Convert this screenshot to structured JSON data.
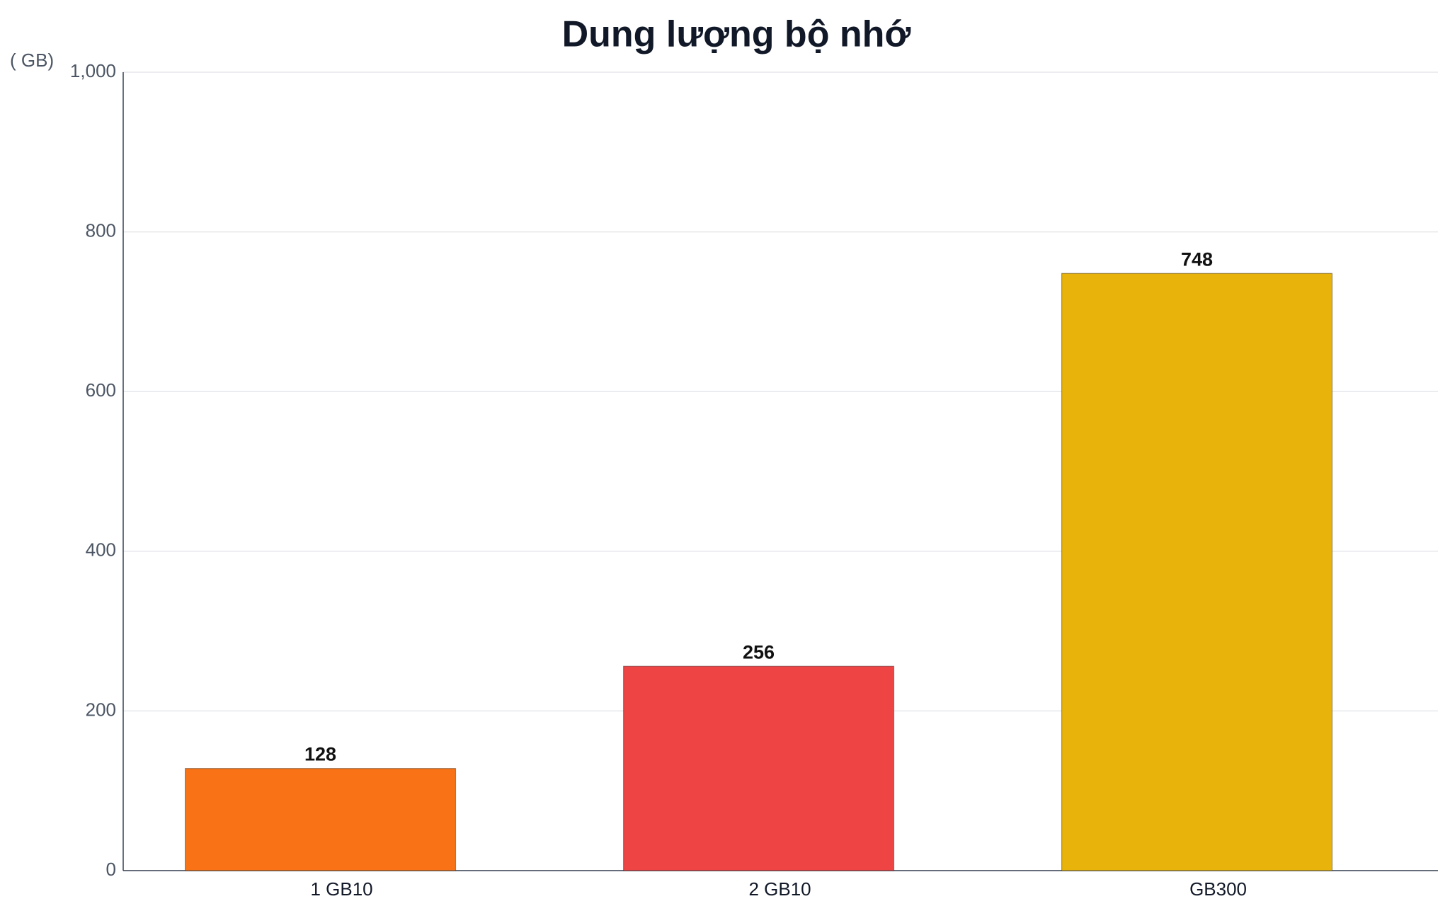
{
  "chart_data": {
    "type": "bar",
    "title": "Dung lượng bộ nhớ",
    "y_label": "( GB)",
    "categories": [
      "1 GB10",
      "2 GB10",
      "GB300"
    ],
    "values": [
      128,
      256,
      748
    ],
    "colors": [
      "#f97316",
      "#ef4444",
      "#e8b40c"
    ],
    "ylim": [
      0,
      1000
    ],
    "yticks": [
      0,
      200,
      400,
      600,
      800,
      {
        "value": 1000,
        "label": "1,000"
      }
    ],
    "grid": true
  }
}
